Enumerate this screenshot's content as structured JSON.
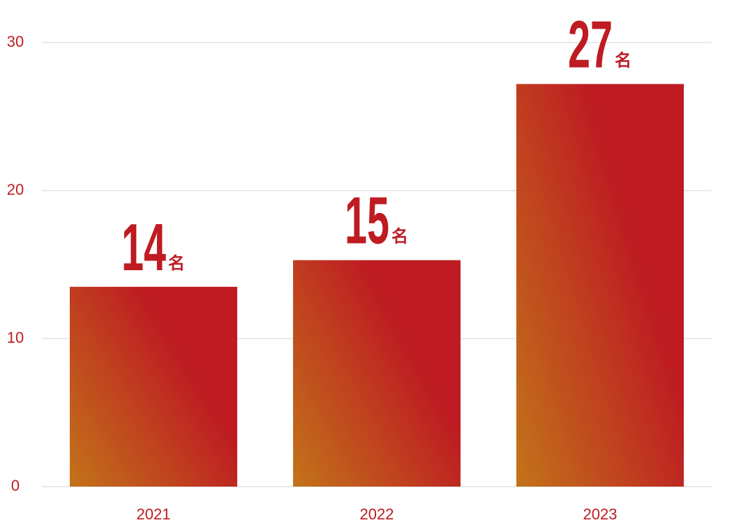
{
  "chart_data": {
    "type": "bar",
    "categories": [
      "2021",
      "2022",
      "2023"
    ],
    "values": [
      13.5,
      15.3,
      27.2
    ],
    "value_labels": [
      "14",
      "15",
      "27"
    ],
    "value_unit": "名",
    "color": "#be1c22",
    "gradient_color": "#c2741a",
    "ylim": [
      0,
      30
    ],
    "yticks": [
      0,
      10,
      20,
      30
    ],
    "grid": true
  }
}
